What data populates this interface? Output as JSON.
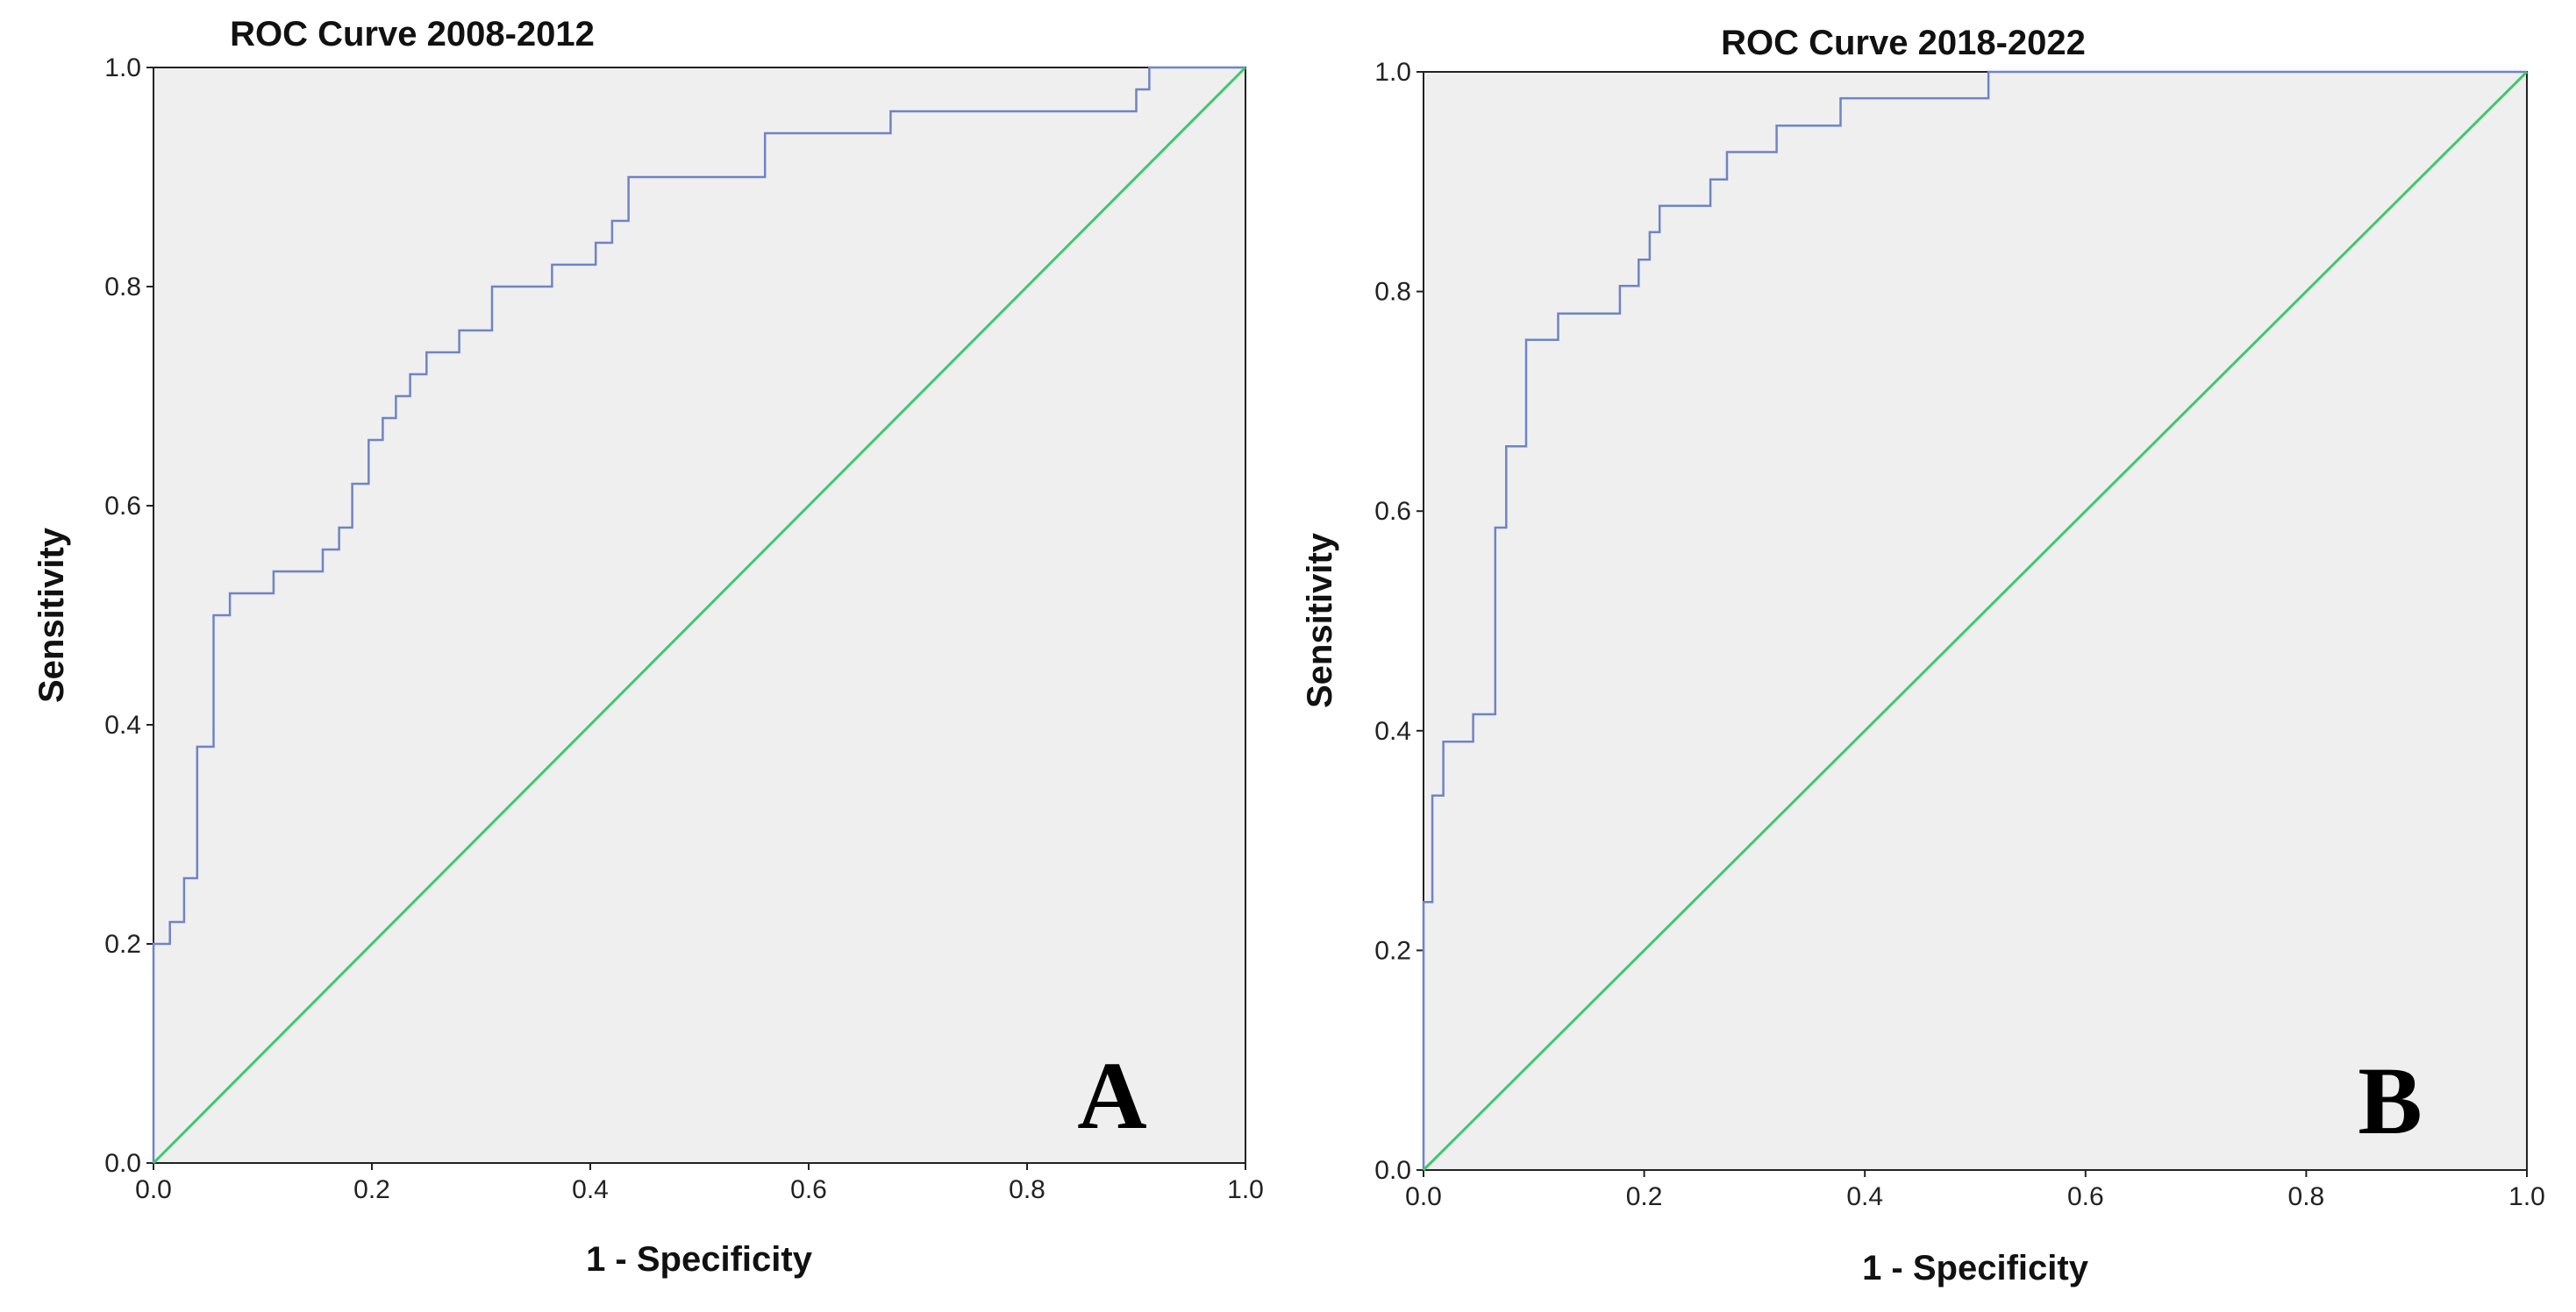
{
  "figure": {
    "panels": [
      "A",
      "B"
    ]
  },
  "colors": {
    "plot_background": "#efefef",
    "roc_curve": "#6f84c4",
    "reference_line": "#3ec86f",
    "frame": "#222222"
  },
  "chart_data": [
    {
      "type": "line",
      "title": "ROC Curve 2008-2012",
      "xlabel": "1 - Specificity",
      "ylabel": "Sensitivity",
      "panel_label": "A",
      "xlim": [
        0,
        1
      ],
      "ylim": [
        0,
        1
      ],
      "grid": false,
      "x_ticks": [
        "0.0",
        "0.2",
        "0.4",
        "0.6",
        "0.8",
        "1.0"
      ],
      "y_ticks": [
        "0.0",
        "0.2",
        "0.4",
        "0.6",
        "0.8",
        "1.0"
      ],
      "series": [
        {
          "name": "ROC curve",
          "x": [
            0,
            0,
            0.015,
            0.015,
            0.028,
            0.028,
            0.04,
            0.04,
            0.055,
            0.055,
            0.07,
            0.07,
            0.11,
            0.11,
            0.155,
            0.155,
            0.17,
            0.17,
            0.182,
            0.182,
            0.197,
            0.197,
            0.21,
            0.21,
            0.222,
            0.222,
            0.235,
            0.235,
            0.25,
            0.25,
            0.262,
            0.262,
            0.28,
            0.28,
            0.31,
            0.31,
            0.365,
            0.365,
            0.405,
            0.405,
            0.42,
            0.42,
            0.435,
            0.435,
            0.56,
            0.56,
            0.675,
            0.675,
            0.9,
            0.9,
            0.912,
            0.912,
            1
          ],
          "y": [
            0,
            0.2,
            0.2,
            0.22,
            0.22,
            0.26,
            0.26,
            0.38,
            0.38,
            0.5,
            0.5,
            0.52,
            0.52,
            0.54,
            0.54,
            0.56,
            0.56,
            0.58,
            0.58,
            0.62,
            0.62,
            0.66,
            0.66,
            0.68,
            0.68,
            0.7,
            0.7,
            0.72,
            0.72,
            0.74,
            0.74,
            0.74,
            0.74,
            0.76,
            0.76,
            0.8,
            0.8,
            0.82,
            0.82,
            0.84,
            0.84,
            0.86,
            0.86,
            0.9,
            0.9,
            0.94,
            0.94,
            0.96,
            0.96,
            0.98,
            0.98,
            1,
            1
          ]
        },
        {
          "name": "Reference line",
          "x": [
            0,
            1
          ],
          "y": [
            0,
            1
          ]
        }
      ]
    },
    {
      "type": "line",
      "title": "ROC Curve 2018-2022",
      "xlabel": "1 - Specificity",
      "ylabel": "Sensitivity",
      "panel_label": "B",
      "xlim": [
        0,
        1
      ],
      "ylim": [
        0,
        1
      ],
      "grid": false,
      "x_ticks": [
        "0.0",
        "0.2",
        "0.4",
        "0.6",
        "0.8",
        "1.0"
      ],
      "y_ticks": [
        "0.0",
        "0.2",
        "0.4",
        "0.6",
        "0.8",
        "1.0"
      ],
      "series": [
        {
          "name": "ROC curve",
          "x": [
            0,
            0,
            0.008,
            0.008,
            0.018,
            0.018,
            0.045,
            0.045,
            0.065,
            0.065,
            0.075,
            0.075,
            0.093,
            0.093,
            0.122,
            0.122,
            0.178,
            0.178,
            0.195,
            0.195,
            0.205,
            0.205,
            0.214,
            0.214,
            0.26,
            0.26,
            0.275,
            0.275,
            0.32,
            0.32,
            0.378,
            0.378,
            0.512,
            0.512,
            1
          ],
          "y": [
            0,
            0.244,
            0.244,
            0.341,
            0.341,
            0.39,
            0.39,
            0.415,
            0.415,
            0.585,
            0.585,
            0.659,
            0.659,
            0.756,
            0.756,
            0.78,
            0.78,
            0.805,
            0.805,
            0.829,
            0.829,
            0.854,
            0.854,
            0.878,
            0.878,
            0.902,
            0.902,
            0.927,
            0.927,
            0.951,
            0.951,
            0.976,
            0.976,
            1,
            1
          ]
        },
        {
          "name": "Reference line",
          "x": [
            0,
            1
          ],
          "y": [
            0,
            1
          ]
        }
      ]
    }
  ]
}
